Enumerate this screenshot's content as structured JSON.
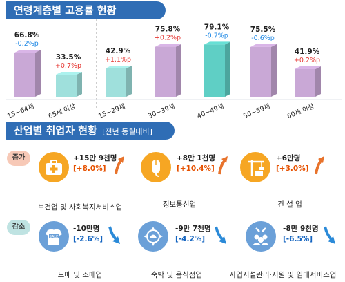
{
  "sections": {
    "employment_title": "연령계층별 고용률 현황",
    "industry_title": "산업별 취업자 현황",
    "industry_subtitle": "[전년 동월대비]"
  },
  "chart_data": {
    "type": "bar",
    "title": "연령계층별 고용률 현황",
    "unit": "%",
    "categories": [
      "15~64세",
      "65세 이상",
      "15~29세",
      "30~39세",
      "40~49세",
      "50~59세",
      "60세 이상"
    ],
    "values": [
      66.8,
      33.5,
      42.9,
      75.8,
      79.1,
      75.5,
      41.9
    ],
    "value_labels": [
      "66.8%",
      "33.5%",
      "42.9%",
      "75.8%",
      "79.1%",
      "75.5%",
      "41.9%"
    ],
    "change_labels": [
      "-0.2%p",
      "+0.7%p",
      "+1.1%p",
      "+0.2%p",
      "-0.7%p",
      "-0.6%p",
      "+0.2%p"
    ],
    "changes": [
      -0.2,
      0.7,
      1.1,
      0.2,
      -0.7,
      -0.6,
      0.2
    ],
    "colors": [
      "#c9a8d6",
      "#9fe0dc",
      "#9fe0dc",
      "#c9a8d6",
      "#5fcfc5",
      "#c9a8d6",
      "#c9a8d6"
    ],
    "groups": [
      [
        "15~64세",
        "65세 이상"
      ],
      [
        "15~29세",
        "30~39세",
        "40~49세",
        "50~59세",
        "60세 이상"
      ]
    ],
    "ylim": [
      0,
      90
    ]
  },
  "industry": {
    "increase_label": "증가",
    "decrease_label": "감소",
    "increase": [
      {
        "icon": "medical-kit-icon",
        "change": "+15만 9천명",
        "pct": "[+8.0%]",
        "name": "보건업 및 사회복지서비스업"
      },
      {
        "icon": "mouse-pointer-icon",
        "change": "+8만 1천명",
        "pct": "[+10.4%]",
        "name": "정보통신업"
      },
      {
        "icon": "construction-crane-icon",
        "change": "+6만명",
        "pct": "[+3.0%]",
        "name": "건 설 업"
      }
    ],
    "decrease": [
      {
        "icon": "sale-shirt-icon",
        "change": "-10만명",
        "pct": "[-2.6%]",
        "name": "도매 및 소매업",
        "icon_text": "SALE"
      },
      {
        "icon": "hotel-service-icon",
        "change": "-9만 7천명",
        "pct": "[-4.2%]",
        "name": "숙박 및 음식점업"
      },
      {
        "icon": "people-tools-icon",
        "change": "-8만 9천명",
        "pct": "[-6.5%]",
        "name": "사업시설관리·지원 및 임대서비스업"
      }
    ]
  },
  "colors": {
    "title_bg": "#2f6db5",
    "increase_icon": "#f6a623",
    "decrease_icon": "#6ba0d8",
    "increase_arrow": "#e8732c",
    "decrease_arrow": "#2b8ad8",
    "positive_change": "#e53935",
    "negative_change": "#1e88e5"
  }
}
